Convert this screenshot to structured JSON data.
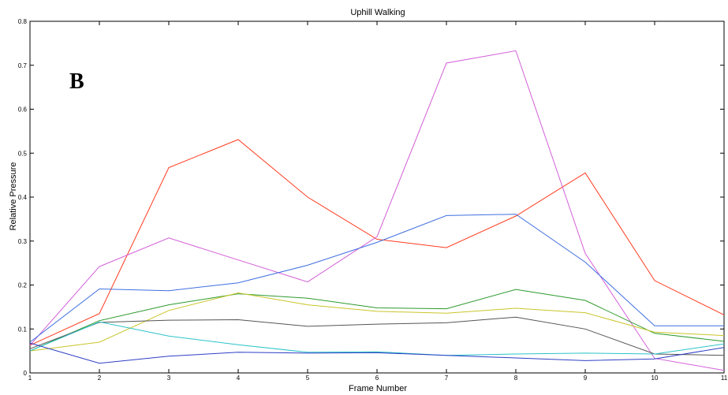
{
  "chart_data": {
    "type": "line",
    "title": "Uphill Walking",
    "xlabel": "Frame Number",
    "ylabel": "Relative Pressure",
    "panel_label": "B",
    "x": [
      1,
      2,
      3,
      4,
      5,
      6,
      7,
      8,
      9,
      10,
      11
    ],
    "xlim": [
      1,
      11
    ],
    "ylim": [
      0,
      0.8
    ],
    "xticks": [
      "1",
      "2",
      "3",
      "4",
      "5",
      "6",
      "7",
      "8",
      "9",
      "10",
      "11"
    ],
    "yticks": [
      "0",
      "0.1",
      "0.2",
      "0.3",
      "0.4",
      "0.5",
      "0.6",
      "0.7",
      "0.8"
    ],
    "grid": false,
    "legend": "none",
    "series": [
      {
        "color": "#ff3b1f",
        "values": [
          0.063,
          0.135,
          0.467,
          0.531,
          0.4,
          0.304,
          0.285,
          0.357,
          0.455,
          0.21,
          0.132
        ]
      },
      {
        "color": "#d35fd8",
        "values": [
          0.063,
          0.242,
          0.307,
          0.257,
          0.207,
          0.31,
          0.705,
          0.733,
          0.272,
          0.033,
          0.006
        ]
      },
      {
        "color": "#3f6fe0",
        "values": [
          0.07,
          0.191,
          0.187,
          0.205,
          0.245,
          0.297,
          0.358,
          0.361,
          0.252,
          0.107,
          0.107
        ]
      },
      {
        "color": "#2d9a2d",
        "values": [
          0.05,
          0.119,
          0.155,
          0.18,
          0.17,
          0.148,
          0.146,
          0.19,
          0.165,
          0.09,
          0.072
        ]
      },
      {
        "color": "#c9c52a",
        "values": [
          0.05,
          0.07,
          0.142,
          0.182,
          0.155,
          0.14,
          0.136,
          0.147,
          0.137,
          0.093,
          0.085
        ]
      },
      {
        "color": "#555555",
        "values": [
          0.055,
          0.115,
          0.12,
          0.121,
          0.106,
          0.111,
          0.114,
          0.127,
          0.1,
          0.043,
          0.04
        ]
      },
      {
        "color": "#2bc4c9",
        "values": [
          0.05,
          0.116,
          0.084,
          0.064,
          0.047,
          0.048,
          0.04,
          0.043,
          0.045,
          0.043,
          0.066
        ]
      },
      {
        "color": "#2e3fc4",
        "values": [
          0.068,
          0.022,
          0.038,
          0.047,
          0.045,
          0.046,
          0.04,
          0.034,
          0.028,
          0.032,
          0.058
        ]
      }
    ]
  }
}
